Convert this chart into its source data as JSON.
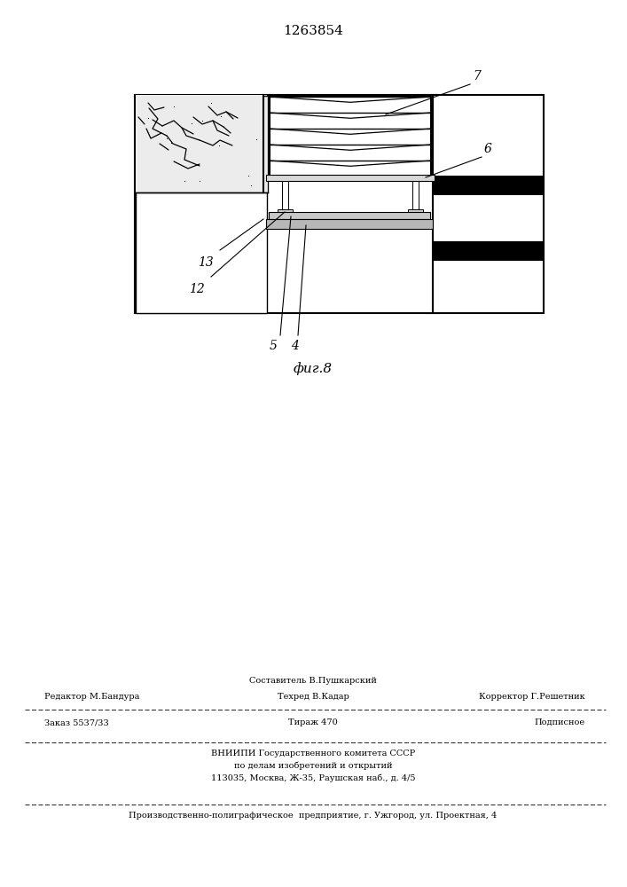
{
  "title": "1263854",
  "fig_label": "фиг.8",
  "bg_color": "#ffffff",
  "footer_editor": "Редактор М.Бандура",
  "footer_composer_title": "Составитель В.Пушкарский",
  "footer_techred": "Техред В.Кадар",
  "footer_corrector": "Корректор Г.Решетник",
  "footer_order": "Заказ 5537/33",
  "footer_tirage": "Тираж 470",
  "footer_podpisnoe": "Подписное",
  "footer_org1": "ВНИИПИ Государственного комитета СССР",
  "footer_org2": "по делам изобретений и открытий",
  "footer_org3": "113035, Москва, Ж-35, Раушская наб., д. 4/5",
  "footer_plant": "Производственно-полиграфическое  предприятие, г. Ужгород, ул. Проектная, 4"
}
